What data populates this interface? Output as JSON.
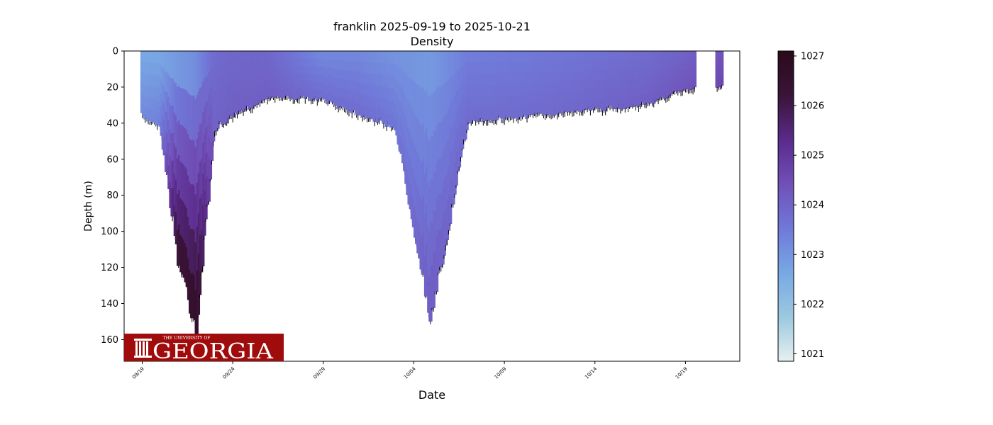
{
  "chart_data": {
    "type": "scatter",
    "title": "franklin 2025-09-19 to 2025-10-21",
    "subtitle": "Density",
    "xlabel": "Date",
    "ylabel": "Depth (m)",
    "xlim": [
      "2025-09-18",
      "2025-10-22"
    ],
    "ylim": [
      172,
      0
    ],
    "y_inverted": true,
    "x_ticks": [
      "09/19",
      "09/24",
      "09/29",
      "10/04",
      "10/09",
      "10/14",
      "10/19"
    ],
    "y_ticks": [
      0,
      20,
      40,
      60,
      80,
      100,
      120,
      140,
      160
    ],
    "grid": false,
    "colorbar": {
      "ticks": [
        1021,
        1022,
        1023,
        1024,
        1025,
        1026,
        1027
      ],
      "range": [
        1020.85,
        1027.1
      ],
      "colormap": "dense",
      "colors": [
        "#e6f0f0",
        "#9cc8e0",
        "#78a8e4",
        "#7078d8",
        "#7050b8",
        "#5a2a8a",
        "#3a1438",
        "#2a0a1a"
      ]
    },
    "profile_envelope": [
      {
        "date": "2025-09-19",
        "max_depth": 38,
        "density_top": 1022.6,
        "density_bottom": 1023.2
      },
      {
        "date": "2025-09-20",
        "max_depth": 42,
        "density_top": 1022.6,
        "density_bottom": 1023.4
      },
      {
        "date": "2025-09-21",
        "max_depth": 120,
        "density_top": 1022.6,
        "density_bottom": 1026.5
      },
      {
        "date": "2025-09-22",
        "max_depth": 160,
        "density_top": 1022.8,
        "density_bottom": 1026.9
      },
      {
        "date": "2025-09-23",
        "max_depth": 45,
        "density_top": 1023.8,
        "density_bottom": 1024.0
      },
      {
        "date": "2025-09-24",
        "max_depth": 38,
        "density_top": 1023.9,
        "density_bottom": 1024.1
      },
      {
        "date": "2025-09-26",
        "max_depth": 26,
        "density_top": 1023.9,
        "density_bottom": 1024.1
      },
      {
        "date": "2025-09-29",
        "max_depth": 28,
        "density_top": 1023.2,
        "density_bottom": 1023.8
      },
      {
        "date": "2025-10-01",
        "max_depth": 36,
        "density_top": 1023.2,
        "density_bottom": 1023.8
      },
      {
        "date": "2025-10-03",
        "max_depth": 44,
        "density_top": 1023.0,
        "density_bottom": 1023.6
      },
      {
        "date": "2025-10-05",
        "max_depth": 155,
        "density_top": 1022.8,
        "density_bottom": 1024.2
      },
      {
        "date": "2025-10-07",
        "max_depth": 40,
        "density_top": 1023.4,
        "density_bottom": 1023.8
      },
      {
        "date": "2025-10-10",
        "max_depth": 38,
        "density_top": 1023.5,
        "density_bottom": 1023.8
      },
      {
        "date": "2025-10-13",
        "max_depth": 34,
        "density_top": 1023.6,
        "density_bottom": 1023.9
      },
      {
        "date": "2025-10-15",
        "max_depth": 33,
        "density_top": 1023.7,
        "density_bottom": 1024.0
      },
      {
        "date": "2025-10-17",
        "max_depth": 30,
        "density_top": 1023.8,
        "density_bottom": 1024.1
      },
      {
        "date": "2025-10-19",
        "max_depth": 22,
        "density_top": 1024.0,
        "density_bottom": 1024.3
      },
      {
        "date": "2025-10-21",
        "max_depth": 20,
        "density_top": 1024.3,
        "density_bottom": 1024.6
      }
    ]
  },
  "logo": {
    "small_text": "THE UNIVERSITY OF",
    "big_text": "GEORGIA",
    "color": "#a00b0b"
  }
}
